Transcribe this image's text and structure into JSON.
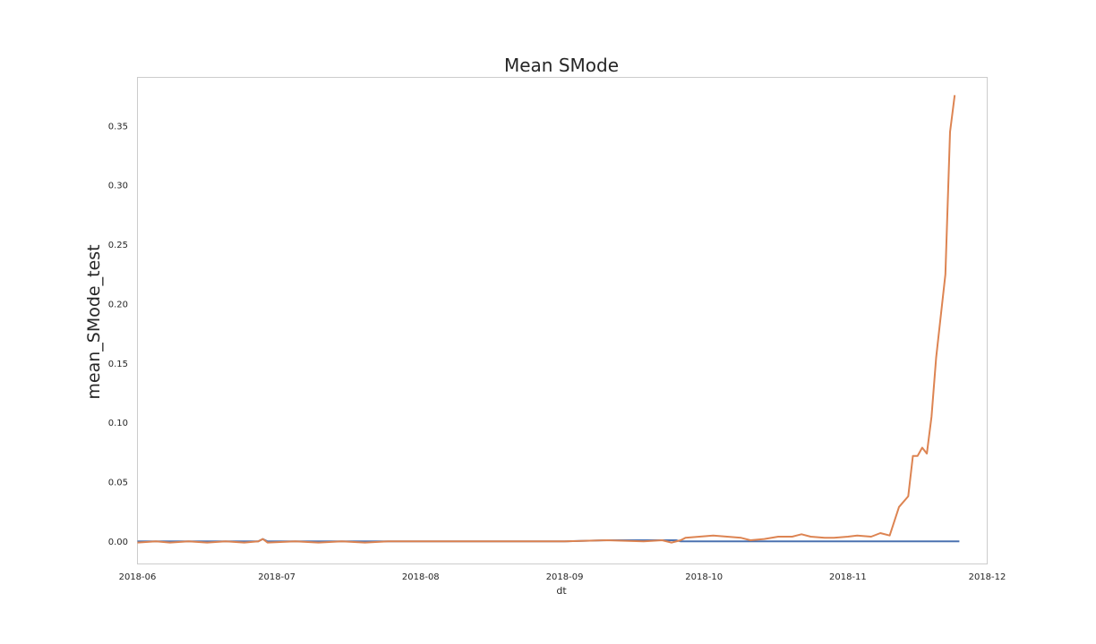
{
  "chart_data": {
    "type": "line",
    "title": "Mean SMode",
    "xlabel": "dt",
    "ylabel": "mean_SMode_test",
    "grid": false,
    "x_axis": {
      "type": "date",
      "range": [
        "2018-06-01",
        "2018-12-01"
      ],
      "ticks": [
        "2018-06-01",
        "2018-07-01",
        "2018-08-01",
        "2018-09-01",
        "2018-10-01",
        "2018-11-01",
        "2018-12-01"
      ],
      "tick_labels": [
        "2018-06",
        "2018-07",
        "2018-08",
        "2018-09",
        "2018-10",
        "2018-11",
        "2018-12"
      ]
    },
    "y_axis": {
      "range": [
        -0.019,
        0.391
      ],
      "ticks": [
        0.0,
        0.05,
        0.1,
        0.15,
        0.2,
        0.25,
        0.3,
        0.35
      ],
      "tick_labels": [
        "0.00",
        "0.05",
        "0.10",
        "0.15",
        "0.20",
        "0.25",
        "0.30",
        "0.35"
      ]
    },
    "series": [
      {
        "color": "#4c72b0",
        "points": [
          [
            "2018-06-01",
            0.0
          ],
          [
            "2018-06-15",
            0.0
          ],
          [
            "2018-06-27",
            0.0
          ],
          [
            "2018-06-28",
            0.002
          ],
          [
            "2018-06-29",
            0.0
          ],
          [
            "2018-07-15",
            0.0
          ],
          [
            "2018-08-01",
            0.0
          ],
          [
            "2018-08-15",
            0.0
          ],
          [
            "2018-09-01",
            0.0
          ],
          [
            "2018-09-10",
            0.001
          ],
          [
            "2018-09-20",
            0.001
          ],
          [
            "2018-09-25",
            0.001
          ],
          [
            "2018-09-26",
            0.0
          ],
          [
            "2018-10-15",
            0.0
          ],
          [
            "2018-11-01",
            0.0
          ],
          [
            "2018-11-15",
            0.0
          ],
          [
            "2018-11-25",
            0.0
          ]
        ]
      },
      {
        "color": "#dd8452",
        "points": [
          [
            "2018-06-01",
            -0.001
          ],
          [
            "2018-06-05",
            0.0
          ],
          [
            "2018-06-08",
            -0.001
          ],
          [
            "2018-06-12",
            0.0
          ],
          [
            "2018-06-16",
            -0.001
          ],
          [
            "2018-06-20",
            0.0
          ],
          [
            "2018-06-24",
            -0.001
          ],
          [
            "2018-06-27",
            0.0
          ],
          [
            "2018-06-28",
            0.002
          ],
          [
            "2018-06-29",
            -0.001
          ],
          [
            "2018-07-05",
            0.0
          ],
          [
            "2018-07-10",
            -0.001
          ],
          [
            "2018-07-15",
            0.0
          ],
          [
            "2018-07-20",
            -0.001
          ],
          [
            "2018-07-25",
            0.0
          ],
          [
            "2018-08-01",
            0.0
          ],
          [
            "2018-08-10",
            0.0
          ],
          [
            "2018-08-20",
            0.0
          ],
          [
            "2018-09-01",
            0.0
          ],
          [
            "2018-09-10",
            0.001
          ],
          [
            "2018-09-18",
            0.0
          ],
          [
            "2018-09-22",
            0.001
          ],
          [
            "2018-09-24",
            -0.001
          ],
          [
            "2018-09-26",
            0.001
          ],
          [
            "2018-09-27",
            0.003
          ],
          [
            "2018-09-30",
            0.004
          ],
          [
            "2018-10-03",
            0.005
          ],
          [
            "2018-10-06",
            0.004
          ],
          [
            "2018-10-09",
            0.003
          ],
          [
            "2018-10-11",
            0.001
          ],
          [
            "2018-10-14",
            0.002
          ],
          [
            "2018-10-17",
            0.004
          ],
          [
            "2018-10-20",
            0.004
          ],
          [
            "2018-10-22",
            0.006
          ],
          [
            "2018-10-24",
            0.004
          ],
          [
            "2018-10-27",
            0.003
          ],
          [
            "2018-10-29",
            0.003
          ],
          [
            "2018-11-01",
            0.004
          ],
          [
            "2018-11-03",
            0.005
          ],
          [
            "2018-11-06",
            0.004
          ],
          [
            "2018-11-08",
            0.007
          ],
          [
            "2018-11-10",
            0.005
          ],
          [
            "2018-11-12",
            0.029
          ],
          [
            "2018-11-14",
            0.038
          ],
          [
            "2018-11-15",
            0.072
          ],
          [
            "2018-11-16",
            0.072
          ],
          [
            "2018-11-17",
            0.079
          ],
          [
            "2018-11-18",
            0.074
          ],
          [
            "2018-11-19",
            0.105
          ],
          [
            "2018-11-20",
            0.155
          ],
          [
            "2018-11-22",
            0.225
          ],
          [
            "2018-11-23",
            0.345
          ],
          [
            "2018-11-24",
            0.376
          ]
        ]
      }
    ]
  }
}
